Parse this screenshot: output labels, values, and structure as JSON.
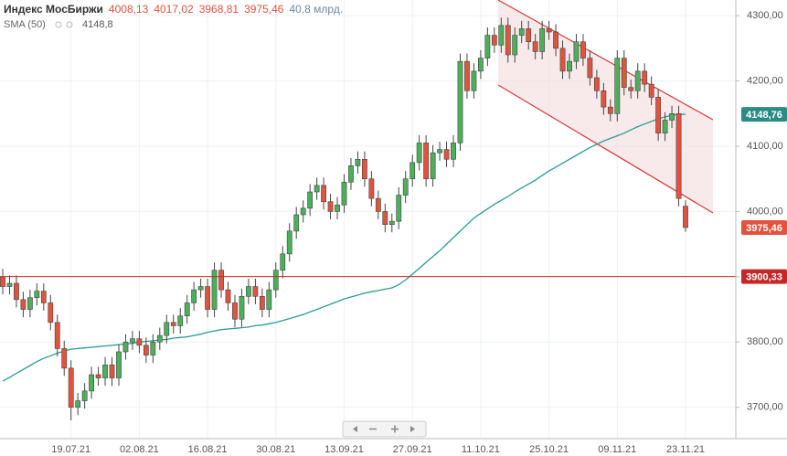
{
  "chart_data": {
    "type": "candlestick",
    "title": "Индекс МосБиржи",
    "header_values": [
      {
        "label": "4008,13",
        "color": "#e0533e"
      },
      {
        "label": "4017,02",
        "color": "#e0533e"
      },
      {
        "label": "3968,81",
        "color": "#e0533e"
      },
      {
        "label": "3975,46",
        "color": "#e0533e"
      },
      {
        "label": "40,8 млрд.",
        "color": "#6f86a0"
      }
    ],
    "sma": {
      "name": "SMA (50)",
      "last_label": "4148,8",
      "color": "#2b9a94",
      "values": [
        3740,
        3746,
        3752,
        3758,
        3764,
        3770,
        3775,
        3779,
        3783,
        3786,
        3789,
        3790,
        3791,
        3792,
        3793,
        3794,
        3795,
        3796,
        3797,
        3798,
        3800,
        3801,
        3802,
        3803,
        3804,
        3806,
        3807,
        3808,
        3810,
        3812,
        3815,
        3817,
        3819,
        3820,
        3821,
        3822,
        3823,
        3825,
        3826,
        3828,
        3830,
        3833,
        3836,
        3839,
        3842,
        3846,
        3850,
        3854,
        3858,
        3862,
        3866,
        3869,
        3872,
        3875,
        3877,
        3879,
        3881,
        3883,
        3888,
        3895,
        3904,
        3913,
        3922,
        3931,
        3940,
        3950,
        3960,
        3970,
        3980,
        3990,
        3997,
        4004,
        4011,
        4017,
        4023,
        4030,
        4036,
        4042,
        4048,
        4055,
        4062,
        4068,
        4074,
        4080,
        4086,
        4092,
        4098,
        4103,
        4108,
        4112,
        4116,
        4120,
        4125,
        4130,
        4134,
        4138,
        4142,
        4145,
        4147,
        4149,
        4148.8
      ]
    },
    "categories": [
      null,
      null,
      null,
      null,
      null,
      null,
      null,
      null,
      null,
      null,
      "19.07.21",
      null,
      null,
      null,
      null,
      null,
      null,
      null,
      null,
      null,
      "02.08.21",
      null,
      null,
      null,
      null,
      null,
      null,
      null,
      null,
      null,
      "16.08.21",
      null,
      null,
      null,
      null,
      null,
      null,
      null,
      null,
      null,
      "30.08.21",
      null,
      null,
      null,
      null,
      null,
      null,
      null,
      null,
      null,
      "13.09.21",
      null,
      null,
      null,
      null,
      null,
      null,
      null,
      null,
      null,
      "27.09.21",
      null,
      null,
      null,
      null,
      null,
      null,
      null,
      null,
      null,
      "11.10.21",
      null,
      null,
      null,
      null,
      null,
      null,
      null,
      null,
      null,
      "25.10.21",
      null,
      null,
      null,
      null,
      null,
      null,
      null,
      null,
      null,
      "09.11.21",
      null,
      null,
      null,
      null,
      null,
      null,
      null,
      null,
      null,
      "23.11.21"
    ],
    "open": [
      3900,
      3885,
      3890,
      3865,
      3850,
      3868,
      3878,
      3860,
      3830,
      3790,
      3760,
      3700,
      3710,
      3725,
      3750,
      3745,
      3765,
      3745,
      3785,
      3800,
      3805,
      3795,
      3780,
      3800,
      3810,
      3830,
      3825,
      3840,
      3860,
      3880,
      3885,
      3850,
      3910,
      3880,
      3860,
      3835,
      3870,
      3885,
      3870,
      3850,
      3880,
      3910,
      3935,
      3970,
      3995,
      4005,
      4030,
      4040,
      4015,
      4000,
      4010,
      4045,
      4070,
      4080,
      4050,
      4020,
      4000,
      3980,
      3985,
      4025,
      4050,
      4075,
      4105,
      4050,
      4090,
      4095,
      4080,
      4105,
      4230,
      4185,
      4215,
      4235,
      4270,
      4255,
      4285,
      4240,
      4270,
      4280,
      4260,
      4245,
      4280,
      4275,
      4250,
      4215,
      4230,
      4260,
      4235,
      4205,
      4185,
      4160,
      4150,
      4235,
      4190,
      4185,
      4215,
      4195,
      4175,
      4120,
      4140,
      4150,
      4008.13
    ],
    "high": [
      3912,
      3902,
      3902,
      3877,
      3880,
      3890,
      3890,
      3872,
      3842,
      3802,
      3772,
      3722,
      3737,
      3762,
      3762,
      3777,
      3777,
      3797,
      3812,
      3817,
      3817,
      3807,
      3812,
      3822,
      3842,
      3842,
      3852,
      3872,
      3892,
      3897,
      3897,
      3922,
      3922,
      3892,
      3872,
      3882,
      3897,
      3897,
      3882,
      3892,
      3922,
      3947,
      3982,
      4007,
      4017,
      4042,
      4052,
      4052,
      4027,
      4022,
      4057,
      4082,
      4092,
      4092,
      4062,
      4032,
      4012,
      3997,
      4037,
      4062,
      4087,
      4117,
      4117,
      4102,
      4107,
      4107,
      4117,
      4242,
      4242,
      4227,
      4247,
      4282,
      4282,
      4297,
      4297,
      4282,
      4292,
      4292,
      4272,
      4292,
      4292,
      4287,
      4262,
      4242,
      4272,
      4272,
      4247,
      4217,
      4197,
      4172,
      4247,
      4247,
      4202,
      4227,
      4227,
      4207,
      4187,
      4152,
      4162,
      4162,
      4017.02
    ],
    "low": [
      3873,
      3873,
      3853,
      3838,
      3838,
      3856,
      3848,
      3818,
      3778,
      3748,
      3680,
      3688,
      3698,
      3713,
      3733,
      3733,
      3733,
      3733,
      3773,
      3788,
      3783,
      3768,
      3768,
      3788,
      3798,
      3813,
      3813,
      3828,
      3848,
      3868,
      3838,
      3838,
      3868,
      3848,
      3823,
      3823,
      3858,
      3858,
      3838,
      3838,
      3868,
      3898,
      3923,
      3958,
      3983,
      3993,
      4018,
      4003,
      3988,
      3988,
      3998,
      4033,
      4058,
      4038,
      4008,
      3988,
      3968,
      3968,
      3973,
      4013,
      4038,
      4063,
      4038,
      4038,
      4078,
      4068,
      4068,
      4093,
      4173,
      4173,
      4203,
      4223,
      4243,
      4243,
      4228,
      4228,
      4258,
      4248,
      4233,
      4233,
      4263,
      4238,
      4203,
      4203,
      4218,
      4223,
      4193,
      4173,
      4148,
      4138,
      4138,
      4178,
      4173,
      4173,
      4183,
      4163,
      4108,
      4108,
      4128,
      4008,
      3968.81
    ],
    "close": [
      3885,
      3890,
      3865,
      3850,
      3868,
      3878,
      3860,
      3830,
      3790,
      3760,
      3700,
      3710,
      3725,
      3750,
      3745,
      3765,
      3745,
      3785,
      3800,
      3805,
      3795,
      3780,
      3800,
      3810,
      3830,
      3825,
      3840,
      3860,
      3880,
      3885,
      3850,
      3910,
      3880,
      3860,
      3835,
      3870,
      3885,
      3870,
      3850,
      3880,
      3910,
      3935,
      3970,
      3995,
      4005,
      4030,
      4040,
      4015,
      4000,
      4010,
      4045,
      4070,
      4080,
      4050,
      4020,
      4000,
      3980,
      3985,
      4025,
      4050,
      4075,
      4105,
      4050,
      4090,
      4095,
      4080,
      4105,
      4230,
      4185,
      4215,
      4235,
      4270,
      4255,
      4285,
      4240,
      4270,
      4280,
      4260,
      4245,
      4280,
      4275,
      4250,
      4215,
      4230,
      4260,
      4235,
      4205,
      4185,
      4160,
      4150,
      4235,
      4190,
      4185,
      4215,
      4195,
      4175,
      4120,
      4140,
      4150,
      4020,
      3975.46
    ],
    "up_color": "#4caf5a",
    "down_color": "#e0533e",
    "ylim": [
      3652,
      4324
    ],
    "yticks": [
      {
        "value": 3700,
        "label": "3700,00"
      },
      {
        "value": 3800,
        "label": "3800,00"
      },
      {
        "value": 3900,
        "label": "3900,00"
      },
      {
        "value": 4000,
        "label": "4000,00"
      },
      {
        "value": 4100,
        "label": "4100,00"
      },
      {
        "value": 4200,
        "label": "4200,00"
      },
      {
        "value": 4300,
        "label": "4300,00"
      }
    ],
    "grid": true,
    "hline": {
      "value": 3900.33,
      "label": "3900,33",
      "color": "#c62828"
    },
    "price_tags": [
      {
        "value": 4148.76,
        "label": "4148,76",
        "color": "#2b8c86"
      },
      {
        "value": 3975.46,
        "label": "3975,46",
        "color": "#e0533e"
      }
    ]
  }
}
